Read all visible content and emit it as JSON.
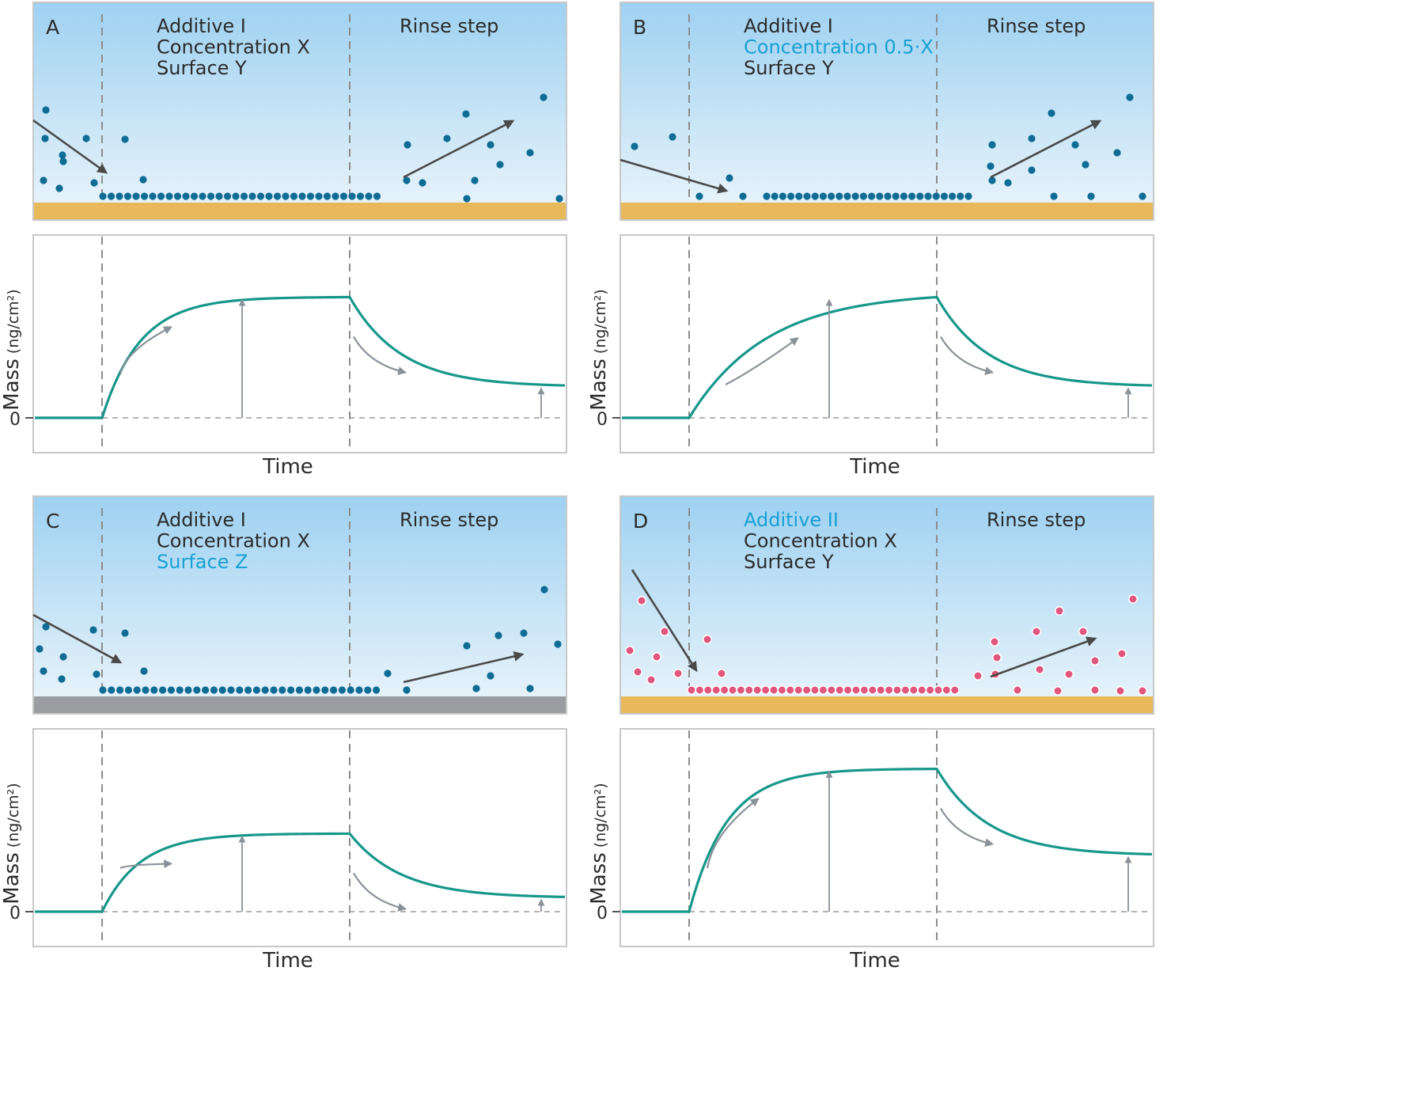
{
  "axis_texts": {
    "ylabel": "Mass",
    "yunit": "(ng/cm²)",
    "xlabel": "Time",
    "zero": "0"
  },
  "colors": {
    "water_top": "#9ed1f1",
    "water_bottom": "#ecf5fb",
    "surface_gold": "#e8b95a",
    "surface_gray": "#9b9da0",
    "particle_blue": "#0f6c95",
    "particle_pink": "#e0567f",
    "curve": "#16978a",
    "highlight_text": "#1aa0d3",
    "arrow_dark": "#4a4a4a",
    "arrow_gray": "#8a9299"
  },
  "panels": [
    {
      "letter": "A",
      "lines": [
        {
          "text": "Additive I",
          "highlight": false
        },
        {
          "text": "Concentration X",
          "highlight": false
        },
        {
          "text": "Surface Y",
          "highlight": false
        }
      ],
      "rinse_label": "Rinse step",
      "surface": "gold",
      "particle_color": "blue",
      "chart_data": {
        "type": "line",
        "phases": [
          "baseline",
          "adsorption",
          "rinse"
        ],
        "rise": "fast",
        "plateau_fraction": 0.82,
        "final_fraction": 0.22
      }
    },
    {
      "letter": "B",
      "lines": [
        {
          "text": "Additive I",
          "highlight": false
        },
        {
          "text": "Concentration 0.5·X",
          "highlight": true
        },
        {
          "text": "Surface Y",
          "highlight": false
        }
      ],
      "rinse_label": "Rinse step",
      "surface": "gold",
      "particle_color": "blue",
      "chart_data": {
        "type": "line",
        "phases": [
          "baseline",
          "adsorption",
          "rinse"
        ],
        "rise": "slow",
        "plateau_fraction": 0.82,
        "final_fraction": 0.22
      }
    },
    {
      "letter": "C",
      "lines": [
        {
          "text": "Additive I",
          "highlight": false
        },
        {
          "text": "Concentration X",
          "highlight": false
        },
        {
          "text": "Surface Z",
          "highlight": true
        }
      ],
      "rinse_label": "Rinse step",
      "surface": "gray",
      "particle_color": "blue",
      "chart_data": {
        "type": "line",
        "phases": [
          "baseline",
          "adsorption",
          "rinse"
        ],
        "rise": "fast",
        "plateau_fraction": 0.53,
        "final_fraction": 0.1
      }
    },
    {
      "letter": "D",
      "lines": [
        {
          "text": "Additive II",
          "highlight": true
        },
        {
          "text": "Concentration X",
          "highlight": false
        },
        {
          "text": "Surface Y",
          "highlight": false
        }
      ],
      "rinse_label": "Rinse step",
      "surface": "gold",
      "particle_color": "pink",
      "chart_data": {
        "type": "line",
        "phases": [
          "baseline",
          "adsorption",
          "rinse"
        ],
        "rise": "fast",
        "plateau_fraction": 0.97,
        "final_fraction": 0.39
      }
    }
  ]
}
